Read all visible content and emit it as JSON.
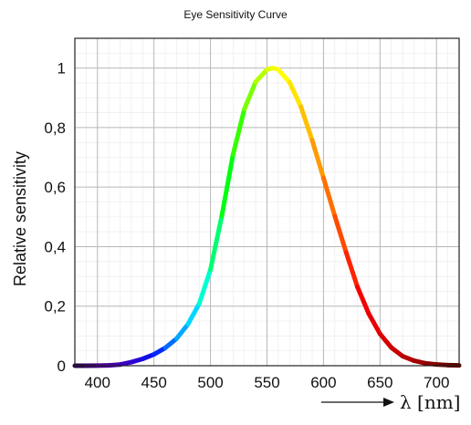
{
  "chart_data": {
    "type": "line",
    "title": "Eye Sensitivity Curve",
    "xlabel": "λ [nm]",
    "ylabel": "Relative sensitivity",
    "xlim": [
      380,
      720
    ],
    "ylim": [
      0,
      1.1
    ],
    "x_ticks": [
      400,
      450,
      500,
      550,
      600,
      650,
      700
    ],
    "x_tick_labels": [
      "400",
      "450",
      "500",
      "550",
      "600",
      "650",
      "700"
    ],
    "y_ticks": [
      0,
      0.2,
      0.4,
      0.6,
      0.8,
      1.0
    ],
    "y_tick_labels": [
      "0",
      "0,2",
      "0,4",
      "0,6",
      "0,8",
      "1"
    ],
    "grid": true,
    "series": [
      {
        "x": [
          380,
          390,
          400,
          410,
          420,
          430,
          440,
          450,
          460,
          470,
          480,
          490,
          500,
          510,
          520,
          530,
          540,
          550,
          555,
          560,
          570,
          580,
          590,
          600,
          610,
          620,
          630,
          640,
          650,
          660,
          670,
          680,
          690,
          700,
          710,
          720
        ],
        "values": [
          0.0,
          0.0001,
          0.0004,
          0.0012,
          0.004,
          0.012,
          0.023,
          0.038,
          0.06,
          0.091,
          0.139,
          0.208,
          0.323,
          0.503,
          0.71,
          0.862,
          0.954,
          0.995,
          1.0,
          0.995,
          0.952,
          0.87,
          0.757,
          0.631,
          0.503,
          0.381,
          0.265,
          0.175,
          0.107,
          0.061,
          0.032,
          0.017,
          0.0082,
          0.0041,
          0.0021,
          0.001
        ],
        "colors": [
          "#2a0050",
          "#3a0070",
          "#4b008e",
          "#4a00a8",
          "#3c00c0",
          "#2a00d8",
          "#1010e8",
          "#0028ff",
          "#006cff",
          "#00a8ff",
          "#00d8ff",
          "#00ffd0",
          "#00ff70",
          "#00ff10",
          "#36ff00",
          "#7aff00",
          "#b2ff00",
          "#dfff00",
          "#f2ff00",
          "#ffff00",
          "#ffe400",
          "#ffc000",
          "#ff9a00",
          "#ff7000",
          "#ff4a00",
          "#ff2200",
          "#f50000",
          "#e80000",
          "#d80000",
          "#c80000",
          "#b50000",
          "#a00000",
          "#8a0000",
          "#760000",
          "#640000",
          "#560000"
        ]
      }
    ]
  }
}
